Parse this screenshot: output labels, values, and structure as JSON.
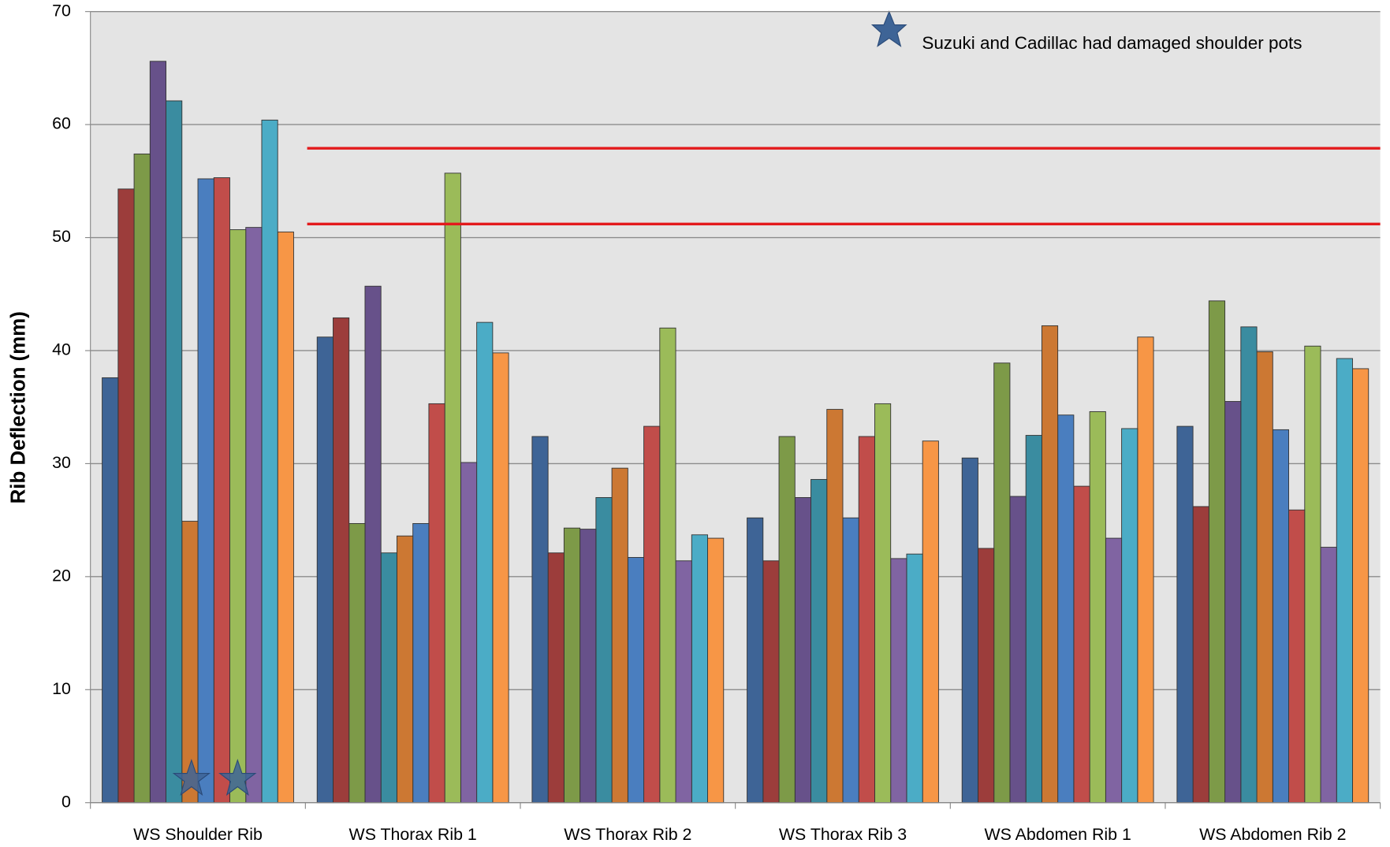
{
  "chart_data": {
    "type": "bar",
    "y_label": "Rib Deflection (mm)",
    "annotation": "Suzuki and Cadillac had damaged shoulder pots",
    "categories": [
      "WS Shoulder Rib",
      "WS Thorax Rib 1",
      "WS Thorax Rib 2",
      "WS Thorax Rib 3",
      "WS Abdomen Rib 1",
      "WS Abdomen Rib 2"
    ],
    "series": [
      {
        "color": "#3e6496",
        "values": [
          37.6,
          41.2,
          32.4,
          25.2,
          30.5,
          33.3
        ]
      },
      {
        "color": "#9c3d3b",
        "values": [
          54.3,
          42.9,
          22.1,
          21.4,
          22.5,
          26.2
        ]
      },
      {
        "color": "#7d9a48",
        "values": [
          57.4,
          24.7,
          24.3,
          32.4,
          38.9,
          44.4
        ]
      },
      {
        "color": "#67518a",
        "values": [
          65.6,
          45.7,
          24.2,
          27.0,
          27.1,
          35.5
        ]
      },
      {
        "color": "#3a8ca0",
        "values": [
          62.1,
          22.1,
          27.0,
          28.6,
          32.5,
          42.1
        ]
      },
      {
        "color": "#cc7833",
        "values": [
          24.9,
          23.6,
          29.6,
          34.8,
          42.2,
          39.9
        ]
      },
      {
        "color": "#4a7ebf",
        "values": [
          55.2,
          24.7,
          21.7,
          25.2,
          34.3,
          33.0
        ]
      },
      {
        "color": "#c14d4a",
        "values": [
          55.3,
          35.3,
          33.3,
          32.4,
          28.0,
          25.9
        ]
      },
      {
        "color": "#9bbb59",
        "values": [
          50.7,
          55.7,
          42.0,
          35.3,
          34.6,
          40.4
        ]
      },
      {
        "color": "#8064a2",
        "values": [
          50.9,
          30.1,
          21.4,
          21.6,
          23.4,
          22.6
        ]
      },
      {
        "color": "#4bacc6",
        "values": [
          60.4,
          42.5,
          23.7,
          22.0,
          33.1,
          39.3
        ]
      },
      {
        "color": "#f79646",
        "values": [
          50.5,
          39.8,
          23.4,
          32.0,
          41.2,
          38.4
        ]
      }
    ],
    "reference_lines": [
      57.9,
      51.2
    ],
    "reference_color": "#e31a1c",
    "ylim": [
      0,
      70
    ],
    "yticks": [
      0,
      10,
      20,
      30,
      40,
      50,
      60,
      70
    ],
    "grid": true
  }
}
